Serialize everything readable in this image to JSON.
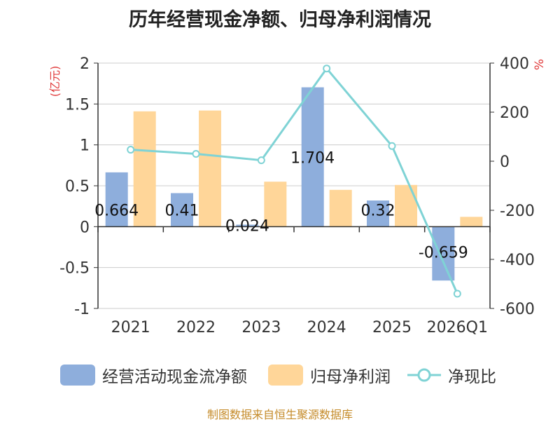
{
  "chart_data": {
    "type": "bar+line",
    "title": "历年经营现金净额、归母净利润情况",
    "categories": [
      "2021",
      "2022",
      "2023",
      "2024",
      "2025",
      "2026Q1"
    ],
    "series": [
      {
        "name": "经营活动现金流净额",
        "kind": "bar",
        "axis": "left",
        "color": "#8eaedc",
        "values": [
          0.664,
          0.41,
          0.024,
          1.704,
          0.32,
          -0.659
        ],
        "labels": [
          "0.664",
          "0.41",
          "0.024",
          "1.704",
          "0.32",
          "-0.659"
        ]
      },
      {
        "name": "归母净利润",
        "kind": "bar",
        "axis": "left",
        "color": "#ffd699",
        "values": [
          1.41,
          1.42,
          0.55,
          0.45,
          0.51,
          0.12
        ]
      },
      {
        "name": "净现比",
        "kind": "line",
        "axis": "right",
        "color": "#7fd3d5",
        "values": [
          47,
          30,
          4,
          378,
          62,
          -540
        ]
      }
    ],
    "y_left": {
      "label": "(亿元)",
      "lim": [
        -1,
        2
      ],
      "ticks": [
        2,
        1.5,
        1,
        0.5,
        0,
        -0.5,
        -1
      ],
      "tick_labels": [
        "2",
        "1.5",
        "1",
        "0.5",
        "0",
        "-0.5",
        "-1"
      ]
    },
    "y_right": {
      "label": "%",
      "lim": [
        -600,
        400
      ],
      "ticks": [
        400,
        200,
        0,
        -200,
        -400,
        -600
      ],
      "tick_labels": [
        "400",
        "200",
        "0",
        "-200",
        "-400",
        "-600"
      ]
    },
    "grid": true,
    "legend_position": "bottom"
  },
  "footer": {
    "source": "制图数据来自恒生聚源数据库"
  }
}
